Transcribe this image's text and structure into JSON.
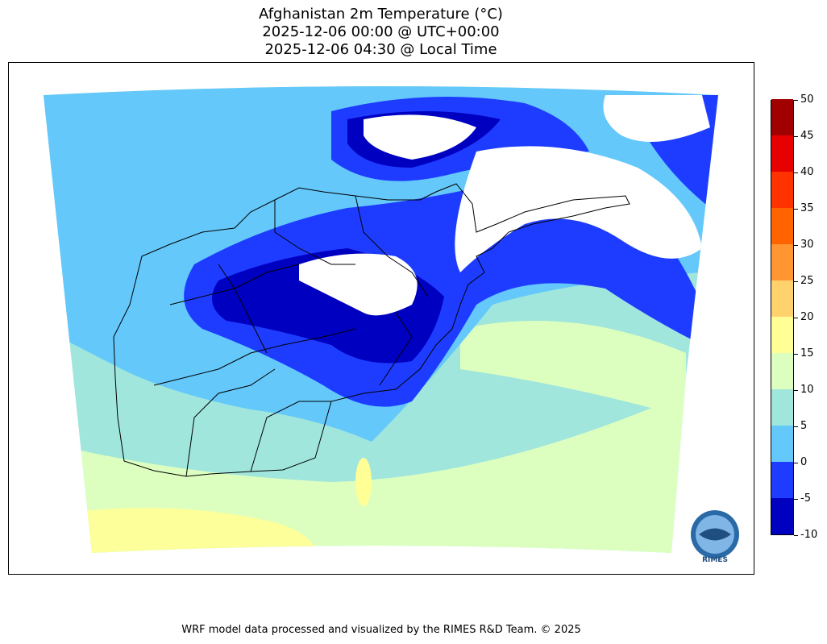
{
  "title": {
    "line1": "Afghanistan 2m Temperature (°C)",
    "line2": "2025-12-06 00:00 @ UTC+00:00",
    "line3": "2025-12-06 04:30 @ Local Time"
  },
  "colorbar": {
    "levels": [
      -10,
      -5,
      0,
      5,
      10,
      15,
      20,
      25,
      30,
      35,
      40,
      45,
      50
    ],
    "labels": [
      "-10",
      "-5",
      "0",
      "5",
      "10",
      "15",
      "20",
      "25",
      "30",
      "35",
      "40",
      "45",
      "50"
    ],
    "colors": [
      "#0000c0",
      "#1e3cff",
      "#64c8fa",
      "#a0e6dc",
      "#dcffc0",
      "#ffff96",
      "#ffd26e",
      "#ff9632",
      "#ff6400",
      "#ff3200",
      "#e60000",
      "#a00000"
    ]
  },
  "logo": {
    "text": "RIMES"
  },
  "credit": "WRF model data processed and visualized by the RIMES R&D Team. © 2025"
}
